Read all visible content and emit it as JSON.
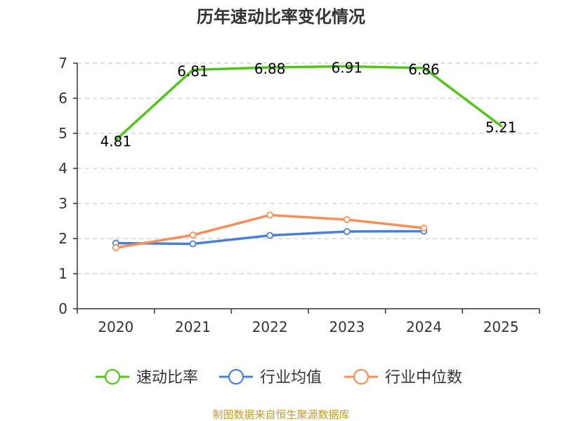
{
  "chart_data": {
    "type": "line",
    "title": "历年速动比率变化情况",
    "categories": [
      "2020",
      "2021",
      "2022",
      "2023",
      "2024",
      "2025"
    ],
    "ylim": [
      0,
      7
    ],
    "yticks": [
      "0",
      "1",
      "2",
      "3",
      "4",
      "5",
      "6",
      "7"
    ],
    "grid": true,
    "legend_position": "bottom",
    "series": [
      {
        "name": "速动比率",
        "color": "#52c41a",
        "values": [
          4.81,
          6.81,
          6.88,
          6.91,
          6.86,
          5.21
        ],
        "labels": [
          "4.81",
          "6.81",
          "6.88",
          "6.91",
          "6.86",
          "5.21"
        ],
        "markers": false
      },
      {
        "name": "行业均值",
        "color": "#4a7fd8",
        "values": [
          1.87,
          1.85,
          2.09,
          2.2,
          2.21,
          null
        ],
        "markers": true
      },
      {
        "name": "行业中位数",
        "color": "#f6905a",
        "values": [
          1.74,
          2.1,
          2.67,
          2.54,
          2.3,
          null
        ],
        "markers": true
      }
    ]
  },
  "footer": {
    "source": "制图数据来自恒生聚源数据库",
    "source_color": "#c49a2c"
  }
}
